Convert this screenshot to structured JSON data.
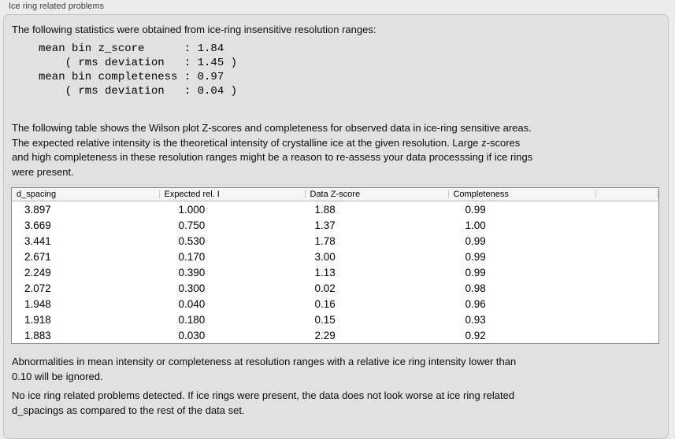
{
  "panel": {
    "title": "Ice ring related problems"
  },
  "intro": {
    "text": "The following statistics were obtained from ice-ring insensitive resolution ranges:"
  },
  "stats": {
    "lines": [
      "mean bin z_score      : 1.84",
      "    ( rms deviation   : 1.45 )",
      "mean bin completeness : 0.97",
      "    ( rms deviation   : 0.04 )"
    ]
  },
  "table_description": {
    "lines": [
      "The following table shows the Wilson plot Z-scores and completeness for observed data in ice-ring sensitive areas.",
      "The expected relative intensity is the theoretical intensity of crystalline ice at the given resolution. Large z-scores",
      "and high completeness in these resolution ranges might be a reason to re-assess your data processsing if ice rings",
      "were present."
    ]
  },
  "table": {
    "columns": [
      "d_spacing",
      "Expected rel. I",
      "Data Z-score",
      "Completeness",
      ""
    ],
    "rows": [
      [
        "3.897",
        "1.000",
        "1.88",
        "0.99"
      ],
      [
        "3.669",
        "0.750",
        "1.37",
        "1.00"
      ],
      [
        "3.441",
        "0.530",
        "1.78",
        "0.99"
      ],
      [
        "2.671",
        "0.170",
        "3.00",
        "0.99"
      ],
      [
        "2.249",
        "0.390",
        "1.13",
        "0.99"
      ],
      [
        "2.072",
        "0.300",
        "0.02",
        "0.98"
      ],
      [
        "1.948",
        "0.040",
        "0.16",
        "0.96"
      ],
      [
        "1.918",
        "0.180",
        "0.15",
        "0.93"
      ],
      [
        "1.883",
        "0.030",
        "2.29",
        "0.92"
      ]
    ]
  },
  "notes": {
    "ignore_lines": [
      "Abnormalities in mean intensity or completeness at resolution ranges with a relative ice ring intensity lower than",
      "0.10 will be ignored."
    ],
    "conclusion_lines": [
      "No ice ring related problems detected. If ice rings were present, the data does not look worse at ice ring related",
      "d_spacings as compared to the rest of the data set."
    ]
  },
  "colors": {
    "page_background": "#ececec",
    "groupbox_background": "#e1e1e1",
    "groupbox_border": "#c6c6c6",
    "table_border": "#8b8b8b",
    "table_header_background": "#f5f5f5",
    "text": "#0d0d0d"
  }
}
